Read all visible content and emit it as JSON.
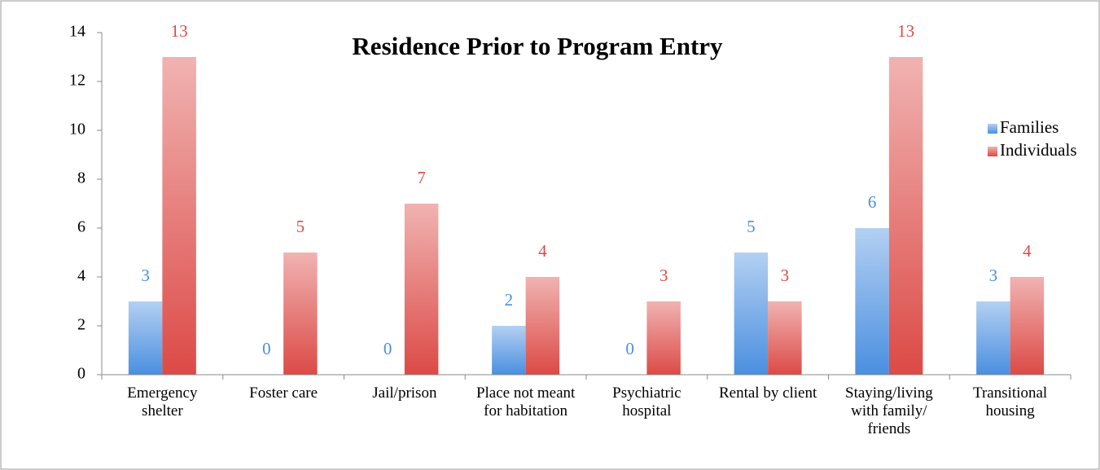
{
  "chart_data": {
    "type": "bar",
    "title": "Residence Prior to Program Entry",
    "categories": [
      "Emergency shelter",
      "Foster care",
      "Jail/prison",
      "Place not meant for habitation",
      "Psychiatric hospital",
      "Rental by client",
      "Staying/living with family/ friends",
      "Transitional housing"
    ],
    "series": [
      {
        "name": "Families",
        "color": "#4a8fe0",
        "values": [
          3,
          0,
          0,
          2,
          0,
          5,
          6,
          3
        ]
      },
      {
        "name": "Individuals",
        "color": "#dc4a46",
        "values": [
          13,
          5,
          7,
          4,
          3,
          3,
          13,
          4
        ]
      }
    ],
    "ylim": [
      0,
      14
    ],
    "yticks": [
      0,
      2,
      4,
      6,
      8,
      10,
      12,
      14
    ],
    "legend": "right"
  }
}
